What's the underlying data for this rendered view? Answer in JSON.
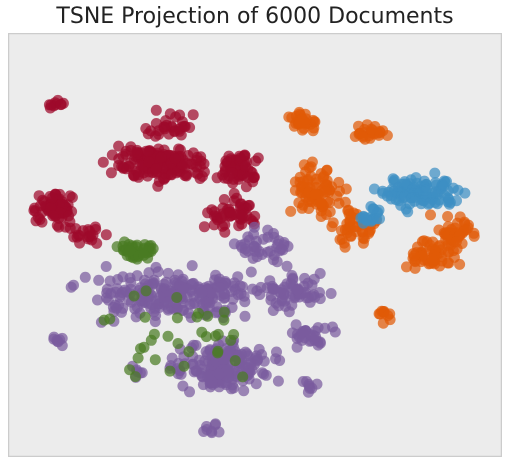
{
  "chart_data": {
    "type": "scatter",
    "title": "TSNE Projection of 6000 Documents",
    "xlabel": "",
    "ylabel": "",
    "grid": false,
    "legend": "none",
    "axes_background": "#ececec",
    "axes_border": "#cccccc",
    "series_colors": [
      "#9e0a2b",
      "#7a5c9e",
      "#4a7c23",
      "#e05a07",
      "#3d8fc4"
    ],
    "clusters": [
      {
        "series": 0,
        "x": [
          25,
          40
        ],
        "y": [
          17,
          27
        ],
        "n": 30
      },
      {
        "series": 0,
        "x": [
          15,
          45
        ],
        "y": [
          25,
          37
        ],
        "n": 160
      },
      {
        "series": 0,
        "x": [
          40,
          52
        ],
        "y": [
          27,
          38
        ],
        "n": 60
      },
      {
        "series": 0,
        "x": [
          4,
          15
        ],
        "y": [
          36,
          47
        ],
        "n": 70
      },
      {
        "series": 0,
        "x": [
          7,
          12
        ],
        "y": [
          15,
          19
        ],
        "n": 10
      },
      {
        "series": 0,
        "x": [
          10,
          22
        ],
        "y": [
          44,
          51
        ],
        "n": 20
      },
      {
        "series": 0,
        "x": [
          37,
          54
        ],
        "y": [
          37,
          48
        ],
        "n": 50
      },
      {
        "series": 1,
        "x": [
          8,
          60
        ],
        "y": [
          54,
          70
        ],
        "n": 230
      },
      {
        "series": 1,
        "x": [
          30,
          57
        ],
        "y": [
          70,
          87
        ],
        "n": 170
      },
      {
        "series": 1,
        "x": [
          44,
          60
        ],
        "y": [
          45,
          56
        ],
        "n": 40
      },
      {
        "series": 1,
        "x": [
          47,
          68
        ],
        "y": [
          54,
          68
        ],
        "n": 60
      },
      {
        "series": 1,
        "x": [
          55,
          68
        ],
        "y": [
          68,
          75
        ],
        "n": 30
      },
      {
        "series": 1,
        "x": [
          39,
          44
        ],
        "y": [
          91,
          95
        ],
        "n": 8
      },
      {
        "series": 1,
        "x": [
          8,
          12
        ],
        "y": [
          71,
          74
        ],
        "n": 8
      },
      {
        "series": 1,
        "x": [
          24,
          28
        ],
        "y": [
          78,
          82
        ],
        "n": 6
      },
      {
        "series": 1,
        "x": [
          58,
          64
        ],
        "y": [
          80,
          86
        ],
        "n": 8
      },
      {
        "series": 2,
        "x": [
          21,
          31
        ],
        "y": [
          48,
          55
        ],
        "n": 40
      },
      {
        "series": 2,
        "x": [
          10,
          64
        ],
        "y": [
          55,
          87
        ],
        "n": 35
      },
      {
        "series": 3,
        "x": [
          56,
          64
        ],
        "y": [
          17,
          24
        ],
        "n": 30
      },
      {
        "series": 3,
        "x": [
          55,
          70
        ],
        "y": [
          29,
          47
        ],
        "n": 80
      },
      {
        "series": 3,
        "x": [
          64,
          77
        ],
        "y": [
          40,
          52
        ],
        "n": 40
      },
      {
        "series": 3,
        "x": [
          68,
          78
        ],
        "y": [
          21,
          27
        ],
        "n": 25
      },
      {
        "series": 3,
        "x": [
          78,
          93
        ],
        "y": [
          47,
          57
        ],
        "n": 55
      },
      {
        "series": 3,
        "x": [
          84,
          97
        ],
        "y": [
          42,
          52
        ],
        "n": 40
      },
      {
        "series": 3,
        "x": [
          73,
          79
        ],
        "y": [
          64,
          69
        ],
        "n": 10
      },
      {
        "series": 4,
        "x": [
          70,
          95
        ],
        "y": [
          32,
          43
        ],
        "n": 100
      },
      {
        "series": 4,
        "x": [
          70,
          78
        ],
        "y": [
          40,
          47
        ],
        "n": 20
      }
    ],
    "point_count": 6000
  }
}
